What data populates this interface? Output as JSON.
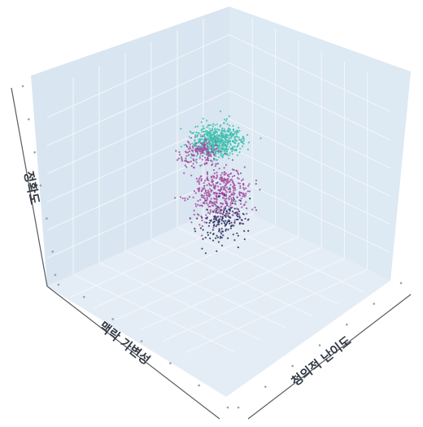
{
  "chart_data": {
    "type": "scatter",
    "projection": "3d",
    "title": "",
    "axes": {
      "x": {
        "label": "맥락 가변성"
      },
      "y": {
        "label": "청의적 난이도"
      },
      "z": {
        "label": "정확도"
      }
    },
    "grid": true,
    "legend": "none",
    "colors": {
      "pane_left": "#d9e6f1",
      "pane_right": "#dde9f3",
      "pane_floor": "#e4edf5",
      "grid": "#f3f7fb",
      "axis_line": "#555b63"
    },
    "clusters": [
      {
        "color": "#3fbfae",
        "approx_points": 600,
        "center": [
          0.62,
          0.62,
          0.82
        ],
        "spread": [
          0.1,
          0.1,
          0.06
        ]
      },
      {
        "color": "#a44a9f",
        "approx_points": 420,
        "center": [
          0.45,
          0.45,
          0.42
        ],
        "spread": [
          0.12,
          0.12,
          0.12
        ]
      },
      {
        "color": "#a44a9f",
        "approx_points": 150,
        "center": [
          0.52,
          0.4,
          0.63
        ],
        "spread": [
          0.08,
          0.08,
          0.05
        ]
      },
      {
        "color": "#2a2f5e",
        "approx_points": 160,
        "center": [
          0.58,
          0.62,
          0.4
        ],
        "spread": [
          0.1,
          0.08,
          0.1
        ]
      }
    ]
  }
}
